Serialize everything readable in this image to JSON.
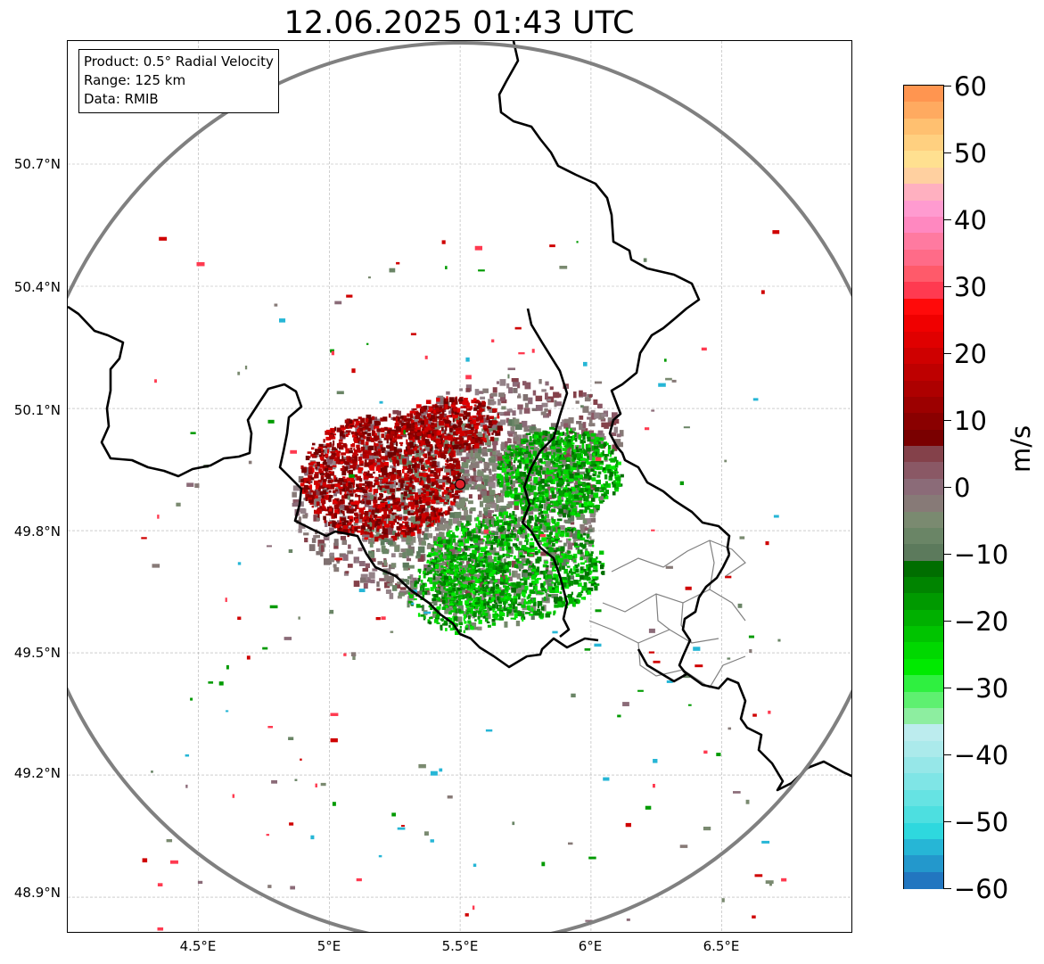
{
  "title": "12.06.2025 01:43 UTC",
  "info": {
    "product": "Product: 0.5° Radial Velocity",
    "range": "Range: 125 km",
    "source": "Data: RMIB"
  },
  "map": {
    "lat_ticks": [
      "50.7°N",
      "50.4°N",
      "50.1°N",
      "49.8°N",
      "49.5°N",
      "49.2°N",
      "48.9°N"
    ],
    "lon_ticks": [
      "4.5°E",
      "5°E",
      "5.5°E",
      "6°E",
      "6.5°E"
    ],
    "extent": {
      "lon_min": 4.0,
      "lon_max": 7.0,
      "lat_min": 48.8,
      "lat_max": 51.0
    },
    "radar_site": {
      "lon": 5.5,
      "lat": 49.914,
      "color": "#e0202a"
    },
    "range_ring_color": "#808080",
    "border_color": "#000000",
    "subdivision_color": "#808080",
    "gridline_color": "#b0b0b0"
  },
  "colorbar": {
    "unit": "m/s",
    "tick_labels": [
      "60",
      "50",
      "40",
      "30",
      "20",
      "10",
      "0",
      "−10",
      "−20",
      "−30",
      "−40",
      "−50",
      "−60"
    ],
    "range": [
      -60,
      60
    ],
    "stops": [
      "#2276c0",
      "#2398cc",
      "#26b6d6",
      "#2ed8de",
      "#4ddfe0",
      "#66e3e3",
      "#7fe5e6",
      "#96e7e8",
      "#abeaeb",
      "#bcecee",
      "#8deea0",
      "#5ef070",
      "#2ff040",
      "#00ea00",
      "#00d800",
      "#00c400",
      "#00b000",
      "#009a00",
      "#008400",
      "#006e00",
      "#5c7a5c",
      "#6a8566",
      "#7a8a70",
      "#877a77",
      "#8b6b78",
      "#8a5865",
      "#84414a",
      "#7a0000",
      "#8a0000",
      "#9c0000",
      "#ad0000",
      "#be0000",
      "#cf0000",
      "#e00000",
      "#f00000",
      "#ff0a0a",
      "#ff3a50",
      "#ff5a6a",
      "#ff6b88",
      "#ff7aa0",
      "#ff88c0",
      "#ff9bd0",
      "#ffb0c0",
      "#ffd0a0",
      "#ffe090",
      "#ffd080",
      "#ffc070",
      "#ffaa60",
      "#ff9550"
    ]
  }
}
